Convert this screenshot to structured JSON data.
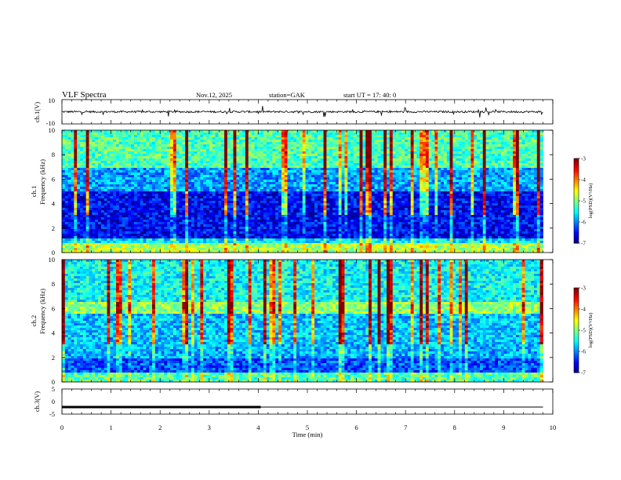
{
  "header": {
    "title": "VLF  Spectra",
    "date": "Nov.12, 2025",
    "station": "station=GAK",
    "start": "start  UT  =    17: 40: 0"
  },
  "chart_data": [
    {
      "type": "line",
      "panel": "ch1_waveform",
      "ylabel": "ch.1(V)",
      "yticks": [
        "10",
        "-10"
      ],
      "ylim": [
        -10,
        10
      ],
      "xlim": [
        0,
        10
      ],
      "baseline_value": 0,
      "description_level": "noisy signal around 0 V with spikes"
    },
    {
      "type": "heatmap",
      "panel": "ch1_spectrogram",
      "ylabel_line1": "ch.1",
      "ylabel_line2": "Frequency (kHz)",
      "yticks": [
        "0",
        "2",
        "4",
        "6",
        "8",
        "10"
      ],
      "ylim": [
        0,
        10
      ],
      "xlim": [
        0,
        10
      ],
      "data_end_min": 9.8,
      "colorbar": {
        "label": "log(PSD)(V²/Hz)",
        "ticks": [
          "-3",
          "-4",
          "-5",
          "-6",
          "-7"
        ],
        "range": [
          -7,
          -3
        ]
      }
    },
    {
      "type": "heatmap",
      "panel": "ch2_spectrogram",
      "ylabel_line1": "ch.2",
      "ylabel_line2": "Frequency (kHz)",
      "yticks": [
        "0",
        "2",
        "4",
        "6",
        "8",
        "10"
      ],
      "ylim": [
        0,
        10
      ],
      "xlim": [
        0,
        10
      ],
      "data_end_min": 9.8,
      "colorbar": {
        "label": "log(PSD)(V²/Hz)",
        "ticks": [
          "-3",
          "-4",
          "-5",
          "-6",
          "-7"
        ],
        "range": [
          -7,
          -3
        ]
      }
    },
    {
      "type": "line",
      "panel": "ch3_waveform",
      "ylabel": "ch.3(V)",
      "yticks": [
        "5",
        "0",
        "-5"
      ],
      "ylim": [
        -5,
        5
      ],
      "xlim": [
        0,
        10
      ],
      "level_value": -2.2,
      "pulse_end_min": 4.05,
      "data_end_min": 9.8
    }
  ],
  "xaxis": {
    "label": "Time  (min)",
    "ticks": [
      "0",
      "1",
      "2",
      "3",
      "4",
      "5",
      "6",
      "7",
      "8",
      "9",
      "10"
    ]
  },
  "colors": {
    "background": "#ffffff",
    "axis": "#000000",
    "spectrogram_low": "#00004a",
    "spectrogram_high": "#ff0000"
  }
}
